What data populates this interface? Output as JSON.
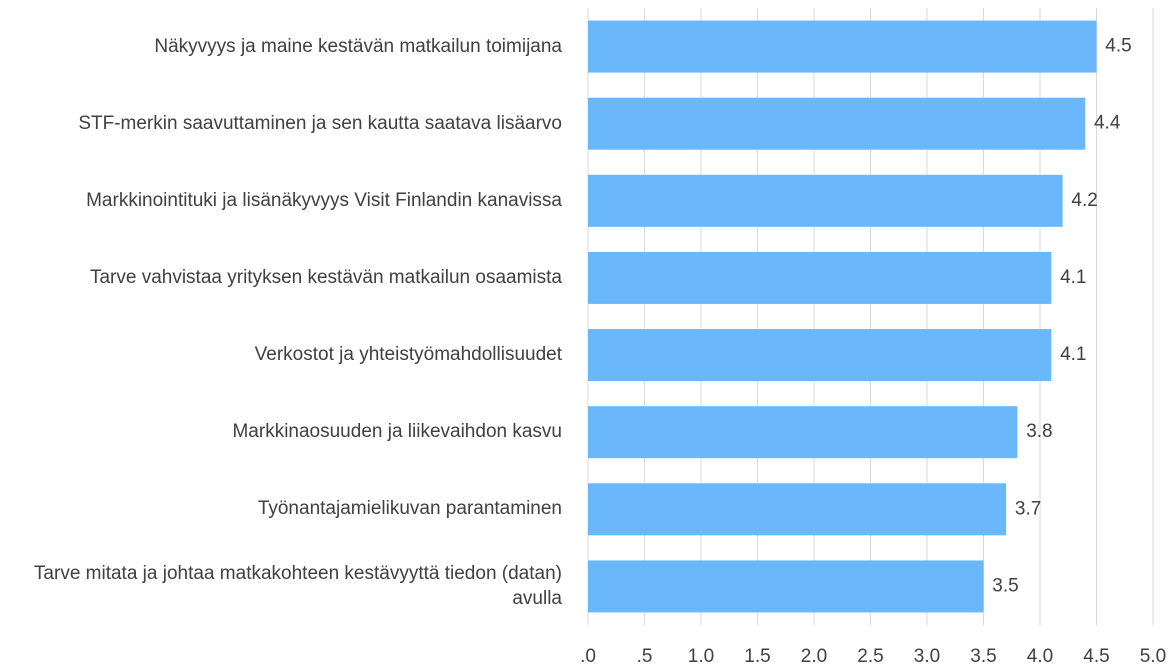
{
  "chart_data": {
    "type": "barh",
    "categories": [
      "Näkyvyys ja maine kestävän matkailun toimijana",
      "STF-merkin saavuttaminen ja sen kautta saatava lisäarvo",
      "Markkinointituki ja lisänäkyvyys Visit Finlandin kanavissa",
      "Tarve vahvistaa yrityksen kestävän matkailun osaamista",
      "Verkostot ja yhteistyömahdollisuudet",
      "Markkinaosuuden ja liikevaihdon kasvu",
      "Työnantajamielikuvan parantaminen",
      "Tarve mitata ja johtaa matkakohteen kestävyyttä tiedon (datan) avulla"
    ],
    "values": [
      4.5,
      4.4,
      4.2,
      4.1,
      4.1,
      3.8,
      3.7,
      3.5
    ],
    "color": "#6ab8fb",
    "xlim": [
      0,
      5
    ],
    "xticks": [
      {
        "value": 0,
        "label": ".0"
      },
      {
        "value": 0.5,
        "label": ".5"
      },
      {
        "value": 1,
        "label": "1.0"
      },
      {
        "value": 1.5,
        "label": "1.5"
      },
      {
        "value": 2,
        "label": "2.0"
      },
      {
        "value": 2.5,
        "label": "2.5"
      },
      {
        "value": 3,
        "label": "3.0"
      },
      {
        "value": 3.5,
        "label": "3.5"
      },
      {
        "value": 4,
        "label": "4.0"
      },
      {
        "value": 4.5,
        "label": "4.5"
      },
      {
        "value": 5,
        "label": "5.0"
      }
    ],
    "grid": true
  }
}
